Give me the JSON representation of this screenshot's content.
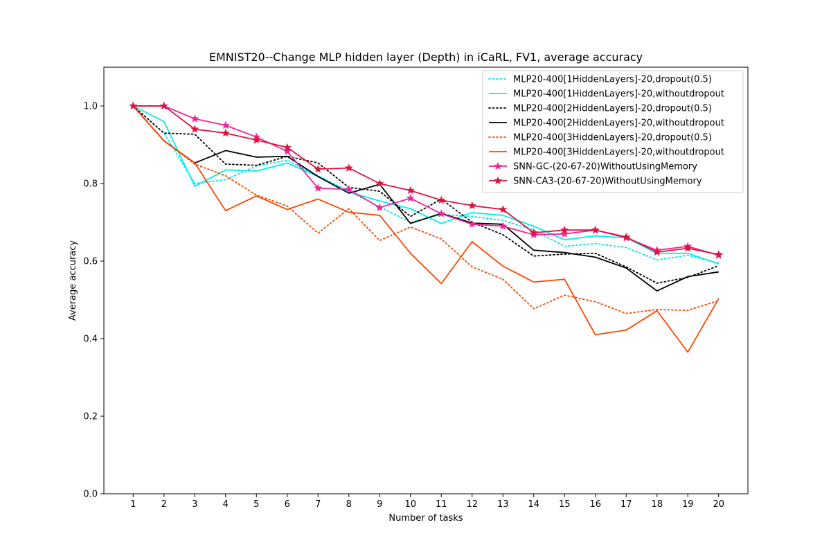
{
  "chart_data": {
    "type": "line",
    "title": "EMNIST20--Change MLP hidden layer (Depth) in iCaRL, FV1, average accuracy",
    "xlabel": "Number of tasks",
    "ylabel": "Average accuracy",
    "xlim": [
      0.05,
      20.95
    ],
    "ylim": [
      0.0,
      1.1
    ],
    "x": [
      1,
      2,
      3,
      4,
      5,
      6,
      7,
      8,
      9,
      10,
      11,
      12,
      13,
      14,
      15,
      16,
      17,
      18,
      19,
      20
    ],
    "xticks": [
      "1",
      "2",
      "3",
      "4",
      "5",
      "6",
      "7",
      "8",
      "9",
      "10",
      "11",
      "12",
      "13",
      "14",
      "15",
      "16",
      "17",
      "18",
      "19",
      "20"
    ],
    "yticks": [
      {
        "value": 0.0,
        "label": "0.0"
      },
      {
        "value": 0.2,
        "label": "0.2"
      },
      {
        "value": 0.4,
        "label": "0.4"
      },
      {
        "value": 0.6,
        "label": "0.6"
      },
      {
        "value": 0.8,
        "label": "0.8"
      },
      {
        "value": 1.0,
        "label": "1.0"
      }
    ],
    "grid": false,
    "legend_position": "top-right",
    "series": [
      {
        "name": "MLP20-400[1HiddenLayers]-20,dropout(0.5)",
        "color": "#00e5ee",
        "style": "dotted",
        "marker": "none",
        "values": [
          1.0,
          0.93,
          0.8,
          0.81,
          0.845,
          0.86,
          0.82,
          0.78,
          0.74,
          0.7,
          0.72,
          0.715,
          0.705,
          0.68,
          0.638,
          0.645,
          0.635,
          0.603,
          0.615,
          0.595
        ]
      },
      {
        "name": "MLP20-400[1HiddenLayers]-20,withoutdropout",
        "color": "#00eeee",
        "style": "solid",
        "marker": "none",
        "values": [
          1.0,
          0.96,
          0.793,
          0.835,
          0.832,
          0.853,
          0.818,
          0.778,
          0.755,
          0.735,
          0.697,
          0.725,
          0.718,
          0.69,
          0.655,
          0.665,
          0.66,
          0.62,
          0.62,
          0.593
        ]
      },
      {
        "name": "MLP20-400[2HiddenLayers]-20,dropout(0.5)",
        "color": "#000000",
        "style": "dotted",
        "marker": "none",
        "values": [
          1.0,
          0.93,
          0.927,
          0.85,
          0.847,
          0.87,
          0.853,
          0.79,
          0.78,
          0.715,
          0.76,
          0.7,
          0.668,
          0.613,
          0.618,
          0.62,
          0.585,
          0.543,
          0.558,
          0.588
        ]
      },
      {
        "name": "MLP20-400[2HiddenLayers]-20,withoutdropout",
        "color": "#000000",
        "style": "solid",
        "marker": "none",
        "values": [
          1.0,
          0.91,
          0.853,
          0.885,
          0.868,
          0.87,
          0.818,
          0.775,
          0.798,
          0.697,
          0.723,
          0.698,
          0.695,
          0.628,
          0.622,
          0.61,
          0.582,
          0.523,
          0.56,
          0.572
        ]
      },
      {
        "name": "MLP20-400[3HiddenLayers]-20,dropout(0.5)",
        "color": "#ff4500",
        "style": "dotted",
        "marker": "none",
        "values": [
          1.0,
          0.91,
          0.85,
          0.82,
          0.77,
          0.742,
          0.672,
          0.735,
          0.653,
          0.688,
          0.657,
          0.585,
          0.553,
          0.477,
          0.512,
          0.495,
          0.465,
          0.475,
          0.473,
          0.498
        ]
      },
      {
        "name": "MLP20-400[3HiddenLayers]-20,withoutdropout",
        "color": "#ff4500",
        "style": "solid",
        "marker": "none",
        "values": [
          1.0,
          0.91,
          0.853,
          0.73,
          0.768,
          0.733,
          0.76,
          0.726,
          0.718,
          0.62,
          0.542,
          0.65,
          0.587,
          0.546,
          0.553,
          0.41,
          0.422,
          0.472,
          0.365,
          0.503
        ]
      },
      {
        "name": "SNN-GC-(20-67-20)WithoutUsingMemory",
        "color": "#f0249b",
        "style": "solid",
        "marker": "star",
        "values": [
          1.0,
          1.0,
          0.967,
          0.95,
          0.92,
          0.883,
          0.788,
          0.785,
          0.738,
          0.762,
          0.722,
          0.695,
          0.69,
          0.668,
          0.67,
          0.68,
          0.66,
          0.628,
          0.638,
          0.615
        ]
      },
      {
        "name": "SNN-CA3-(20-67-20)WithoutUsingMemory",
        "color": "#dc143c",
        "style": "solid",
        "marker": "star",
        "values": [
          1.0,
          1.0,
          0.94,
          0.93,
          0.912,
          0.893,
          0.837,
          0.84,
          0.8,
          0.782,
          0.757,
          0.743,
          0.733,
          0.673,
          0.68,
          0.68,
          0.662,
          0.623,
          0.633,
          0.617
        ]
      }
    ]
  }
}
